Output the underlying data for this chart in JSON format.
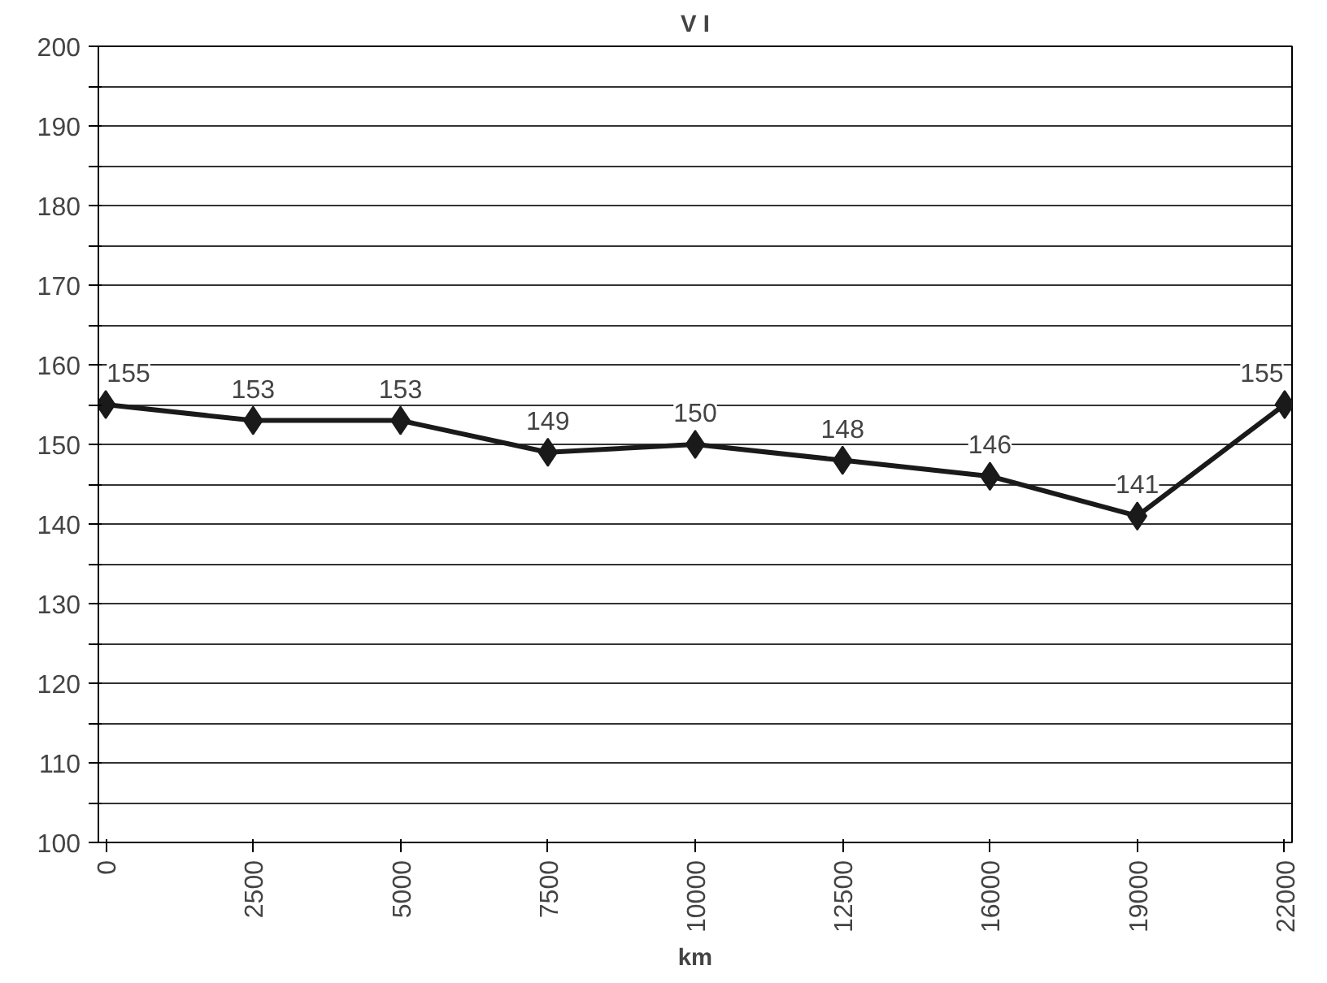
{
  "chart_data": {
    "type": "line",
    "title": "V I",
    "xlabel": "km",
    "categories": [
      "0",
      "2500",
      "5000",
      "7500",
      "10000",
      "12500",
      "16000",
      "19000",
      "22000"
    ],
    "series": [
      {
        "color": "#1a1a1a",
        "values": [
          155,
          153,
          153,
          149,
          150,
          148,
          146,
          141,
          155
        ]
      }
    ],
    "ylim": [
      100,
      200
    ],
    "yticks": [
      100,
      {
        "value": 105,
        "label": null
      },
      110,
      {
        "value": 115,
        "label": null
      },
      120,
      {
        "value": 125,
        "label": null
      },
      130,
      {
        "value": 135,
        "label": null
      },
      140,
      {
        "value": 145,
        "label": null
      },
      150,
      {
        "value": 155,
        "label": null
      },
      160,
      {
        "value": 165,
        "label": null
      },
      170,
      {
        "value": 175,
        "label": null
      },
      180,
      {
        "value": 185,
        "label": null
      },
      190,
      {
        "value": 195,
        "label": null
      },
      200
    ],
    "grid": "y",
    "marker": "diamond",
    "line_style": "solid",
    "data_labels": true
  }
}
